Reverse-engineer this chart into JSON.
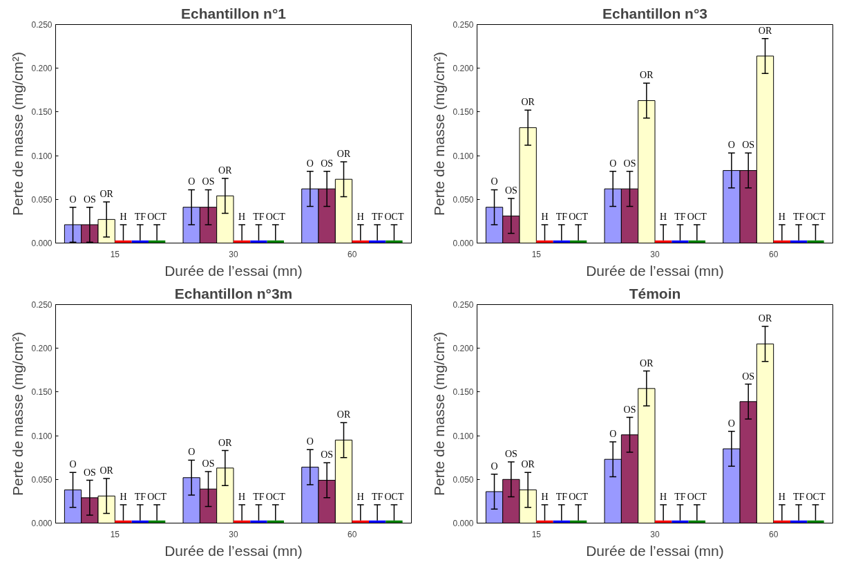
{
  "chart_data": [
    {
      "type": "bar",
      "title": "Echantillon n°1",
      "xlabel": "Durée de l’essai (mn)",
      "ylabel": "Perte de masse (mg/cm²)",
      "categories": [
        "15",
        "30",
        "60"
      ],
      "ylim": [
        0,
        0.25
      ],
      "yticks": [
        {
          "value": 0,
          "label": "0.000"
        },
        {
          "value": 0.05,
          "label": "0.050"
        },
        {
          "value": 0.1,
          "label": "0.100"
        },
        {
          "value": 0.15,
          "label": "0.150"
        },
        {
          "value": 0.2,
          "label": "0.200"
        },
        {
          "value": 0.25,
          "label": "0.250"
        }
      ],
      "grid": false,
      "legend": false,
      "series": [
        {
          "name": "O",
          "color": "#9999ff",
          "values": [
            0.021,
            0.041,
            0.062
          ],
          "errors": [
            0.02,
            0.02,
            0.02
          ]
        },
        {
          "name": "OS",
          "color": "#993366",
          "values": [
            0.021,
            0.041,
            0.062
          ],
          "errors": [
            0.02,
            0.02,
            0.02
          ]
        },
        {
          "name": "OR",
          "color": "#ffffcc",
          "values": [
            0.027,
            0.054,
            0.073
          ],
          "errors": [
            0.02,
            0.02,
            0.02
          ]
        },
        {
          "name": "H",
          "color": "#ff0000",
          "values": [
            0.003,
            0.003,
            0.003
          ],
          "errors": [
            [
              0.003,
              0.021
            ],
            [
              0.003,
              0.021
            ],
            [
              0.003,
              0.021
            ]
          ]
        },
        {
          "name": "TF",
          "color": "#0000ff",
          "values": [
            0.003,
            0.003,
            0.003
          ],
          "errors": [
            [
              0.003,
              0.021
            ],
            [
              0.003,
              0.021
            ],
            [
              0.003,
              0.021
            ]
          ]
        },
        {
          "name": "OCT",
          "color": "#008000",
          "values": [
            0.003,
            0.003,
            0.003
          ],
          "errors": [
            [
              0.003,
              0.021
            ],
            [
              0.003,
              0.021
            ],
            [
              0.003,
              0.021
            ]
          ]
        }
      ]
    },
    {
      "type": "bar",
      "title": "Echantillon n°3",
      "xlabel": "Durée de l’essai (mn)",
      "ylabel": "Perte de masse (mg/cm²)",
      "categories": [
        "15",
        "30",
        "60"
      ],
      "ylim": [
        0,
        0.25
      ],
      "yticks": [
        {
          "value": 0,
          "label": "0.000"
        },
        {
          "value": 0.05,
          "label": "0.050"
        },
        {
          "value": 0.1,
          "label": "0.100"
        },
        {
          "value": 0.15,
          "label": "0.150"
        },
        {
          "value": 0.2,
          "label": "0.200"
        },
        {
          "value": 0.25,
          "label": "0.250"
        }
      ],
      "grid": false,
      "legend": false,
      "series": [
        {
          "name": "O",
          "color": "#9999ff",
          "values": [
            0.041,
            0.062,
            0.083
          ],
          "errors": [
            0.02,
            0.02,
            0.02
          ]
        },
        {
          "name": "OS",
          "color": "#993366",
          "values": [
            0.031,
            0.062,
            0.083
          ],
          "errors": [
            0.02,
            0.02,
            0.02
          ]
        },
        {
          "name": "OR",
          "color": "#ffffcc",
          "values": [
            0.132,
            0.163,
            0.214
          ],
          "errors": [
            0.02,
            0.02,
            0.02
          ]
        },
        {
          "name": "H",
          "color": "#ff0000",
          "values": [
            0.003,
            0.003,
            0.003
          ],
          "errors": [
            [
              0.003,
              0.021
            ],
            [
              0.003,
              0.021
            ],
            [
              0.003,
              0.021
            ]
          ]
        },
        {
          "name": "TF",
          "color": "#0000ff",
          "values": [
            0.003,
            0.003,
            0.003
          ],
          "errors": [
            [
              0.003,
              0.021
            ],
            [
              0.003,
              0.021
            ],
            [
              0.003,
              0.021
            ]
          ]
        },
        {
          "name": "OCT",
          "color": "#008000",
          "values": [
            0.003,
            0.003,
            0.003
          ],
          "errors": [
            [
              0.003,
              0.021
            ],
            [
              0.003,
              0.021
            ],
            [
              0.003,
              0.021
            ]
          ]
        }
      ]
    },
    {
      "type": "bar",
      "title": "Echantillon n°3m",
      "xlabel": "Durée de l’essai (mn)",
      "ylabel": "Perte de masse (mg/cm²)",
      "categories": [
        "15",
        "30",
        "60"
      ],
      "ylim": [
        0,
        0.25
      ],
      "yticks": [
        {
          "value": 0,
          "label": "0.000"
        },
        {
          "value": 0.05,
          "label": "0.050"
        },
        {
          "value": 0.1,
          "label": "0.100"
        },
        {
          "value": 0.15,
          "label": "0.150"
        },
        {
          "value": 0.2,
          "label": "0.200"
        },
        {
          "value": 0.25,
          "label": "0.250"
        }
      ],
      "grid": false,
      "legend": false,
      "series": [
        {
          "name": "O",
          "color": "#9999ff",
          "values": [
            0.038,
            0.052,
            0.064
          ],
          "errors": [
            0.02,
            0.02,
            0.02
          ]
        },
        {
          "name": "OS",
          "color": "#993366",
          "values": [
            0.029,
            0.039,
            0.049
          ],
          "errors": [
            0.02,
            0.02,
            0.02
          ]
        },
        {
          "name": "OR",
          "color": "#ffffcc",
          "values": [
            0.031,
            0.063,
            0.095
          ],
          "errors": [
            0.02,
            0.02,
            0.02
          ]
        },
        {
          "name": "H",
          "color": "#ff0000",
          "values": [
            0.003,
            0.003,
            0.003
          ],
          "errors": [
            [
              0.003,
              0.021
            ],
            [
              0.003,
              0.021
            ],
            [
              0.003,
              0.021
            ]
          ]
        },
        {
          "name": "TF",
          "color": "#0000ff",
          "values": [
            0.003,
            0.003,
            0.003
          ],
          "errors": [
            [
              0.003,
              0.021
            ],
            [
              0.003,
              0.021
            ],
            [
              0.003,
              0.021
            ]
          ]
        },
        {
          "name": "OCT",
          "color": "#008000",
          "values": [
            0.003,
            0.003,
            0.003
          ],
          "errors": [
            [
              0.003,
              0.021
            ],
            [
              0.003,
              0.021
            ],
            [
              0.003,
              0.021
            ]
          ]
        }
      ]
    },
    {
      "type": "bar",
      "title": "Témoin",
      "xlabel": "Durée de l’essai (mn)",
      "ylabel": "Perte de masse (mg/cm²)",
      "categories": [
        "15",
        "30",
        "60"
      ],
      "ylim": [
        0,
        0.25
      ],
      "yticks": [
        {
          "value": 0,
          "label": "0.000"
        },
        {
          "value": 0.05,
          "label": "0.050"
        },
        {
          "value": 0.1,
          "label": "0.100"
        },
        {
          "value": 0.15,
          "label": "0.150"
        },
        {
          "value": 0.2,
          "label": "0.200"
        },
        {
          "value": 0.25,
          "label": "0.250"
        }
      ],
      "grid": false,
      "legend": false,
      "series": [
        {
          "name": "O",
          "color": "#9999ff",
          "values": [
            0.036,
            0.073,
            0.085
          ],
          "errors": [
            0.02,
            0.02,
            0.02
          ]
        },
        {
          "name": "OS",
          "color": "#993366",
          "values": [
            0.05,
            0.101,
            0.139
          ],
          "errors": [
            0.02,
            0.02,
            0.02
          ]
        },
        {
          "name": "OR",
          "color": "#ffffcc",
          "values": [
            0.038,
            0.154,
            0.205
          ],
          "errors": [
            0.02,
            0.02,
            0.02
          ]
        },
        {
          "name": "H",
          "color": "#ff0000",
          "values": [
            0.003,
            0.003,
            0.003
          ],
          "errors": [
            [
              0.003,
              0.021
            ],
            [
              0.003,
              0.021
            ],
            [
              0.003,
              0.021
            ]
          ]
        },
        {
          "name": "TF",
          "color": "#0000ff",
          "values": [
            0.003,
            0.003,
            0.003
          ],
          "errors": [
            [
              0.003,
              0.021
            ],
            [
              0.003,
              0.021
            ],
            [
              0.003,
              0.021
            ]
          ]
        },
        {
          "name": "OCT",
          "color": "#008000",
          "values": [
            0.003,
            0.003,
            0.003
          ],
          "errors": [
            [
              0.003,
              0.021
            ],
            [
              0.003,
              0.021
            ],
            [
              0.003,
              0.021
            ]
          ]
        }
      ]
    }
  ]
}
